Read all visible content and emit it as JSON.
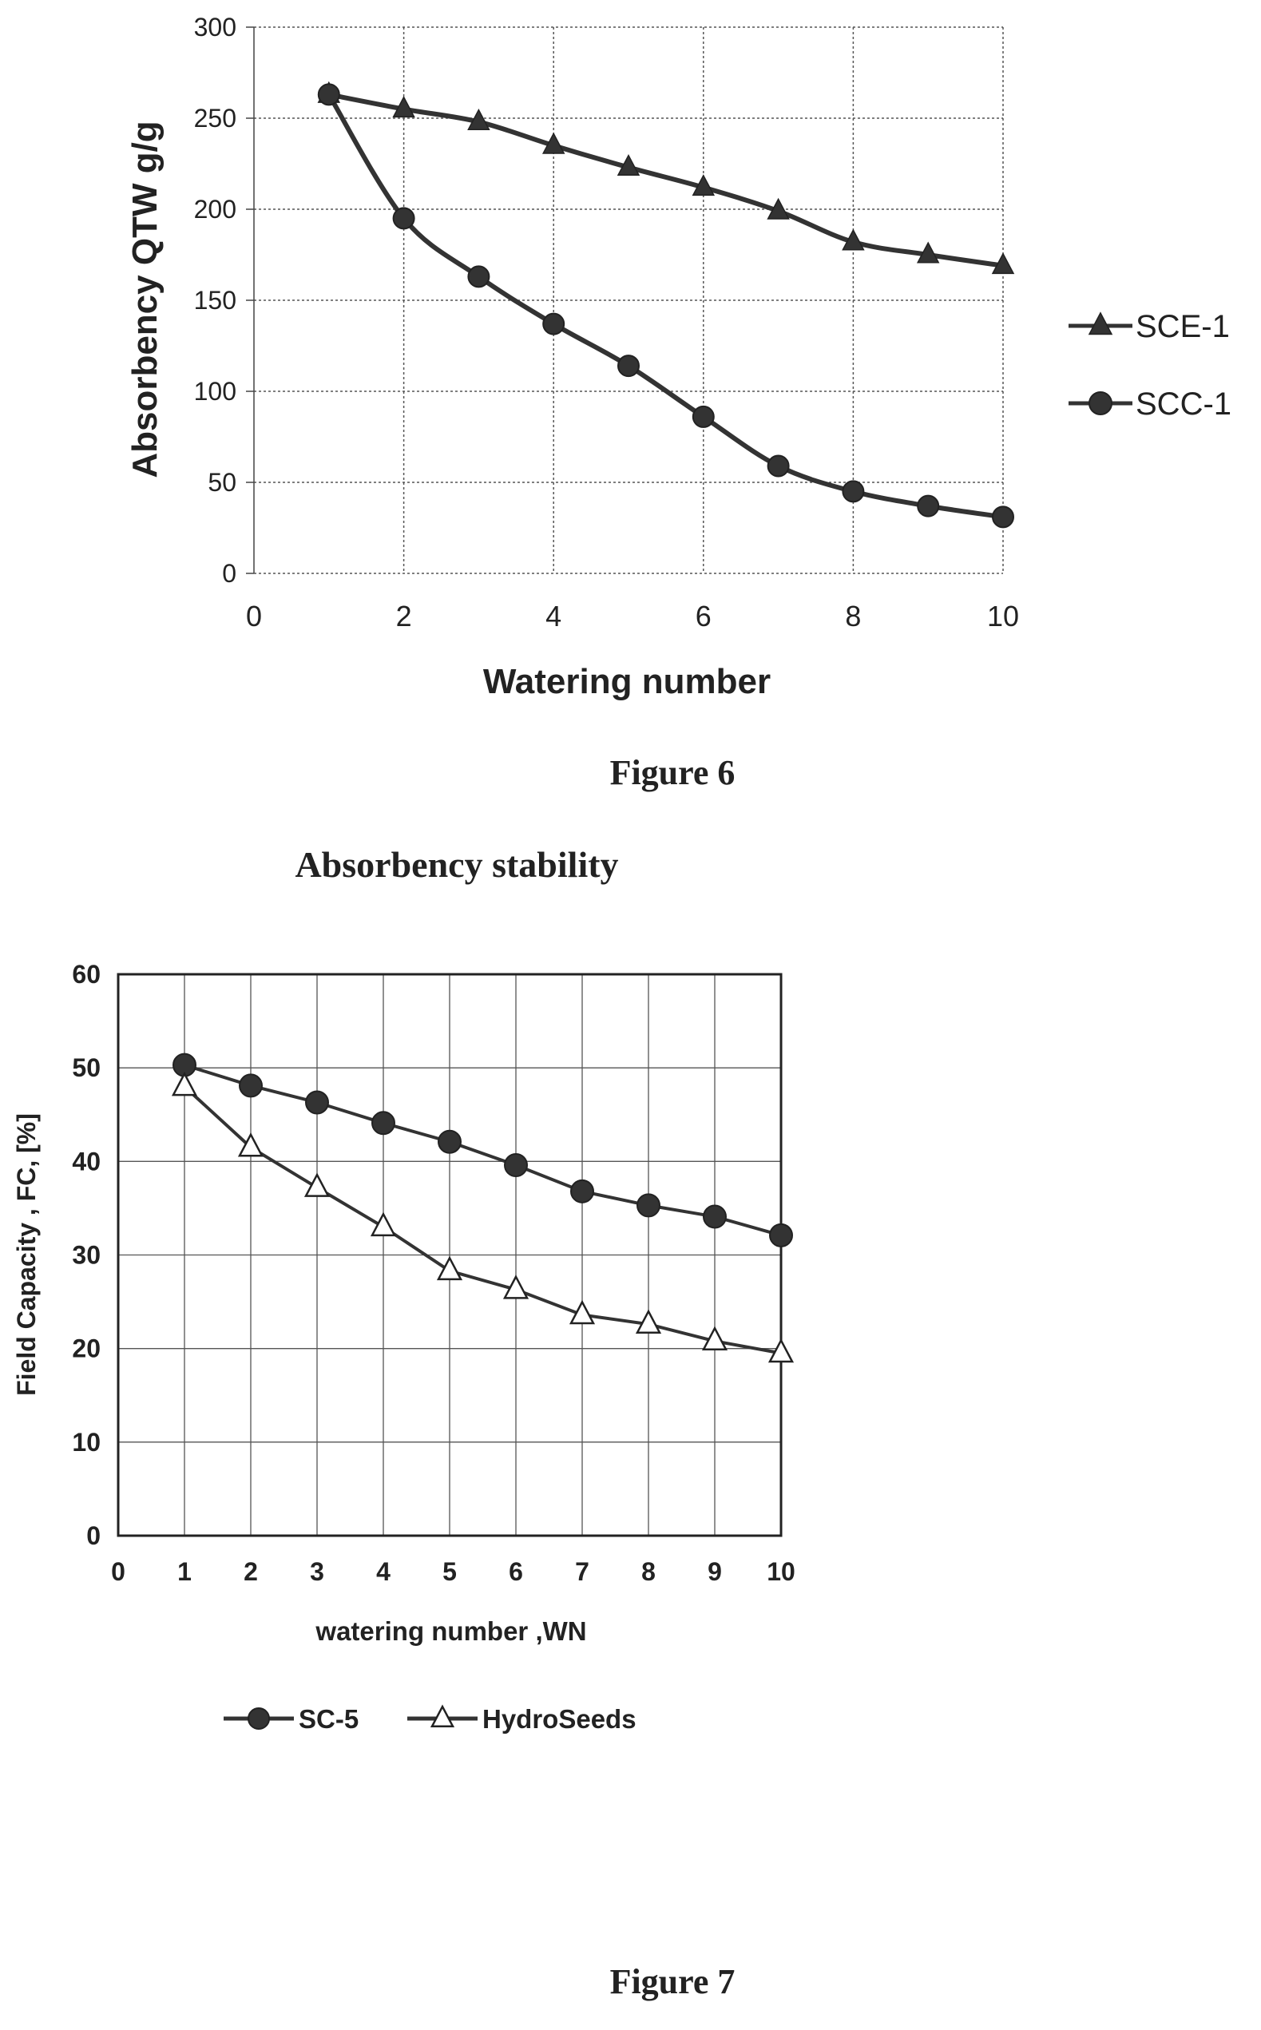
{
  "figure6": {
    "caption": "Figure 6"
  },
  "figure7": {
    "heading": "Absorbency stability",
    "caption": "Figure 7"
  },
  "chart_data": [
    {
      "type": "line",
      "title": "",
      "xlabel": "Watering number",
      "ylabel": "Absorbency QTW g/g",
      "xlim": [
        0,
        10
      ],
      "ylim": [
        0,
        300
      ],
      "xticks": [
        "0",
        "2",
        "4",
        "6",
        "8",
        "10"
      ],
      "yticks": [
        "0",
        "50",
        "100",
        "150",
        "200",
        "250",
        "300"
      ],
      "grid": true,
      "legend_position": "right",
      "series": [
        {
          "name": "SCE-1",
          "marker": "triangle-filled",
          "x": [
            1,
            2,
            3,
            4,
            5,
            6,
            7,
            8,
            9,
            10
          ],
          "y": [
            263,
            255,
            248,
            235,
            223,
            212,
            199,
            182,
            175,
            169
          ]
        },
        {
          "name": "SCC-1",
          "marker": "circle-filled",
          "x": [
            1,
            2,
            3,
            4,
            5,
            6,
            7,
            8,
            9,
            10
          ],
          "y": [
            263,
            195,
            163,
            137,
            114,
            86,
            59,
            45,
            37,
            31
          ]
        }
      ]
    },
    {
      "type": "line",
      "title": "",
      "xlabel": "watering number ,WN",
      "ylabel": "Field Capacity , FC, [%]",
      "xlim": [
        0,
        10
      ],
      "ylim": [
        0,
        60
      ],
      "xticks": [
        "0",
        "1",
        "2",
        "3",
        "4",
        "5",
        "6",
        "7",
        "8",
        "9",
        "10"
      ],
      "yticks": [
        "0",
        "10",
        "20",
        "30",
        "40",
        "50",
        "60"
      ],
      "grid": true,
      "legend_position": "bottom",
      "series": [
        {
          "name": "SC-5",
          "marker": "circle-filled",
          "x": [
            1,
            2,
            3,
            4,
            5,
            6,
            7,
            8,
            9,
            10
          ],
          "y": [
            50.3,
            48.1,
            46.3,
            44.1,
            42.1,
            39.6,
            36.8,
            35.3,
            34.1,
            32.1
          ]
        },
        {
          "name": "HydroSeeds",
          "marker": "triangle-open",
          "x": [
            1,
            2,
            3,
            4,
            5,
            6,
            7,
            8,
            9,
            10
          ],
          "y": [
            48.0,
            41.5,
            37.2,
            33.0,
            28.3,
            26.3,
            23.6,
            22.6,
            20.8,
            19.5
          ]
        }
      ]
    }
  ]
}
